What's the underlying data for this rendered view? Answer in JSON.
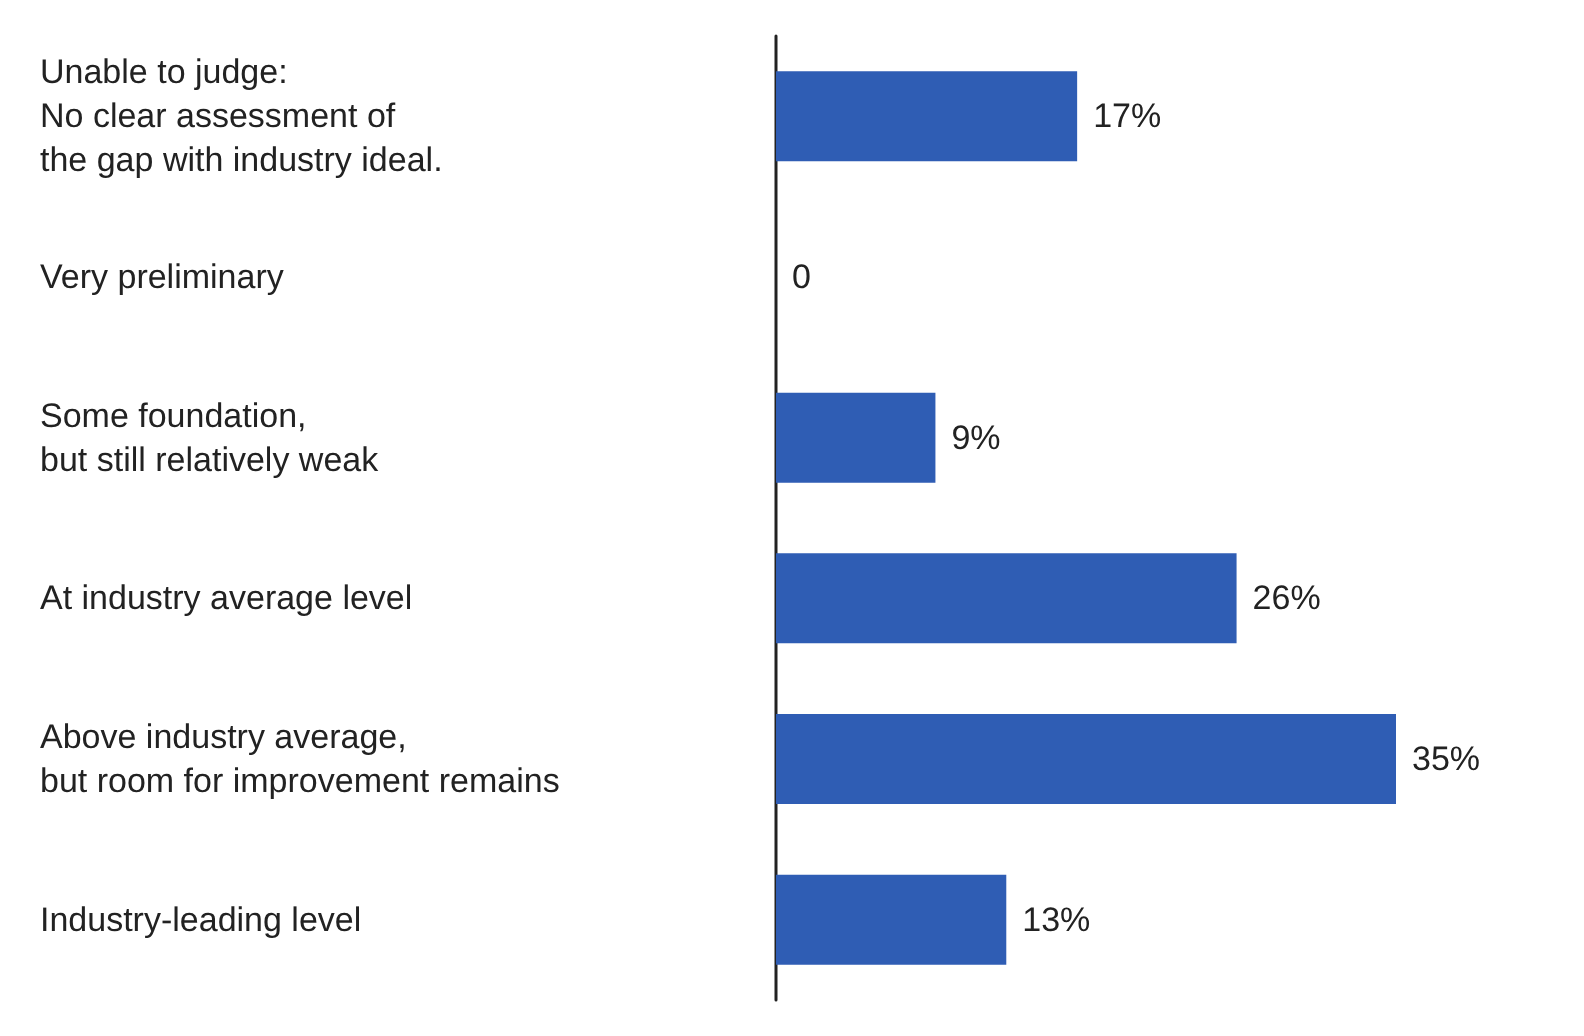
{
  "chart_data": {
    "type": "bar",
    "orientation": "horizontal",
    "categories": [
      "Unable to judge:\nNo clear assessment of\nthe gap with industry ideal.",
      "Very preliminary",
      "Some foundation,\nbut still relatively weak",
      "At industry average level",
      "Above industry average,\nbut room for improvement remains",
      "Industry-leading level"
    ],
    "values": [
      17,
      0,
      9,
      26,
      35,
      13
    ],
    "value_labels": [
      "17%",
      "0",
      "9%",
      "26%",
      "35%",
      "13%"
    ],
    "color": "#2f5db4"
  }
}
